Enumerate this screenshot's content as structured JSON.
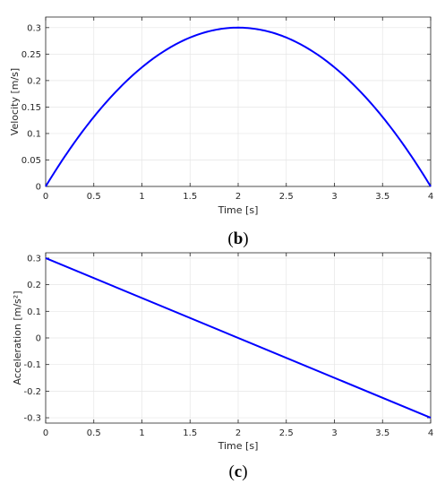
{
  "chart_data": [
    {
      "type": "line",
      "panel_caption": "b",
      "xlabel": "Time [s]",
      "ylabel": "Velocity [m/s]",
      "xlim": [
        0,
        4
      ],
      "ylim": [
        0,
        0.32
      ],
      "x_ticks": [
        0,
        0.5,
        1,
        1.5,
        2,
        2.5,
        3,
        3.5,
        4
      ],
      "x_tick_labels": [
        "0",
        "0.5",
        "1",
        "1.5",
        "2",
        "2.5",
        "3",
        "3.5",
        "4"
      ],
      "y_ticks": [
        0,
        0.05,
        0.1,
        0.15,
        0.2,
        0.25,
        0.3
      ],
      "y_tick_labels": [
        "0",
        "0.05",
        "0.1",
        "0.15",
        "0.2",
        "0.25",
        "0.3"
      ],
      "grid": true,
      "color": "#0000ff",
      "series": [
        {
          "x": [
            0,
            0.25,
            0.5,
            0.75,
            1,
            1.25,
            1.5,
            1.75,
            2,
            2.25,
            2.5,
            2.75,
            3,
            3.25,
            3.5,
            3.75,
            4
          ],
          "y": [
            0,
            0.0703,
            0.1313,
            0.1828,
            0.225,
            0.2578,
            0.2813,
            0.2953,
            0.3,
            0.2953,
            0.2813,
            0.2578,
            0.225,
            0.1828,
            0.1313,
            0.0703,
            0
          ]
        }
      ]
    },
    {
      "type": "line",
      "panel_caption": "c",
      "xlabel": "Time [s]",
      "ylabel": "Acceleration [m/s²]",
      "xlim": [
        0,
        4
      ],
      "ylim": [
        -0.32,
        0.32
      ],
      "x_ticks": [
        0,
        0.5,
        1,
        1.5,
        2,
        2.5,
        3,
        3.5,
        4
      ],
      "x_tick_labels": [
        "0",
        "0.5",
        "1",
        "1.5",
        "2",
        "2.5",
        "3",
        "3.5",
        "4"
      ],
      "y_ticks": [
        -0.3,
        -0.2,
        -0.1,
        0,
        0.1,
        0.2,
        0.3
      ],
      "y_tick_labels": [
        "-0.3",
        "-0.2",
        "-0.1",
        "0",
        "0.1",
        "0.2",
        "0.3"
      ],
      "grid": true,
      "color": "#0000ff",
      "series": [
        {
          "x": [
            0,
            4
          ],
          "y": [
            0.3,
            -0.3
          ]
        }
      ]
    }
  ]
}
